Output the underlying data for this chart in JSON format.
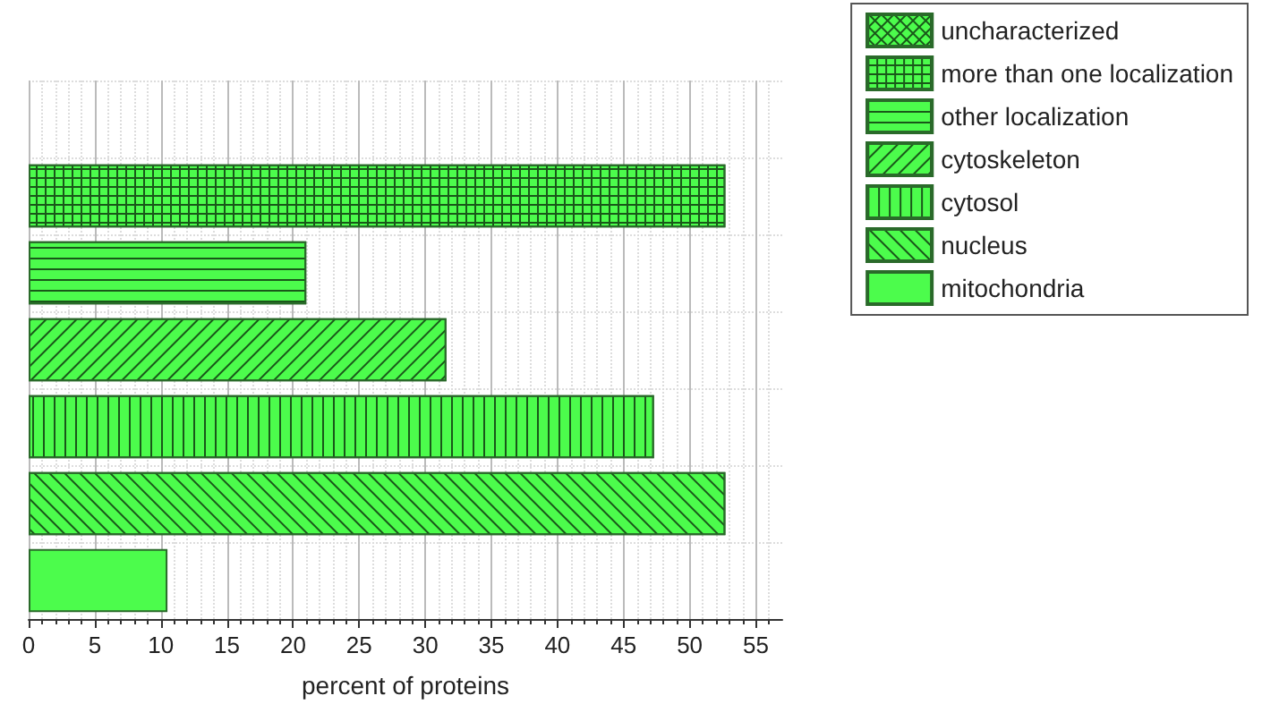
{
  "chart_data": {
    "type": "bar",
    "orientation": "horizontal",
    "xlabel": "percent of proteins",
    "categories": [
      null,
      null,
      null,
      null,
      null,
      null,
      null
    ],
    "series": [
      {
        "name": "uncharacterized",
        "color": "#4cfc4c",
        "values": [
          0,
          null,
          null,
          null,
          null,
          null,
          null
        ]
      },
      {
        "name": "more than one localization",
        "color": "#4cfc4c",
        "values": [
          null,
          52.7,
          null,
          null,
          null,
          null,
          null
        ]
      },
      {
        "name": "other localization",
        "color": "#4cfc4c",
        "values": [
          null,
          null,
          21.0,
          null,
          null,
          null,
          null
        ]
      },
      {
        "name": "cytoskeleton",
        "color": "#4cfc4c",
        "values": [
          null,
          null,
          null,
          31.6,
          null,
          null,
          null
        ]
      },
      {
        "name": "cytosol",
        "color": "#4cfc4c",
        "values": [
          null,
          null,
          null,
          null,
          47.3,
          null,
          null
        ]
      },
      {
        "name": "nucleus",
        "color": "#4cfc4c",
        "values": [
          null,
          null,
          null,
          null,
          null,
          52.7,
          null
        ]
      },
      {
        "name": "mitochondria",
        "color": "#4cfc4c",
        "values": [
          null,
          null,
          null,
          null,
          null,
          null,
          10.5
        ]
      }
    ],
    "xlim": [
      0,
      57
    ],
    "xticks": [
      0,
      5,
      10,
      15,
      20,
      25,
      30,
      35,
      40,
      45,
      50,
      55
    ],
    "grid": true,
    "legend": "top right",
    "tick_labels": "x"
  }
}
